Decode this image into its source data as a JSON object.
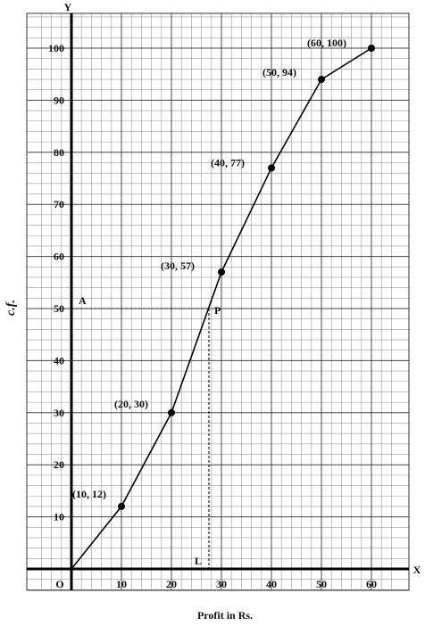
{
  "chart_data": {
    "type": "line",
    "title": "",
    "xlabel": "Profit in Rs.",
    "ylabel": "c.f.",
    "x_axis_name": "X",
    "y_axis_name": "Y",
    "origin_label": "O",
    "xlim": [
      -8,
      65
    ],
    "ylim": [
      -8,
      107
    ],
    "x_ticks": [
      10,
      20,
      30,
      40,
      50,
      60
    ],
    "x_tick_labels": [
      "10",
      "20",
      "30",
      "40",
      "50",
      "60"
    ],
    "y_ticks": [
      10,
      20,
      30,
      40,
      50,
      60,
      70,
      80,
      90,
      100
    ],
    "y_tick_labels": [
      "10",
      "20",
      "30",
      "40",
      "50",
      "60",
      "70",
      "80",
      "90",
      "100"
    ],
    "grid": true,
    "series": [
      {
        "x": [
          0,
          10,
          20,
          30,
          40,
          50,
          60
        ],
        "y": [
          0,
          12,
          30,
          57,
          77,
          94,
          100
        ]
      }
    ],
    "point_labels": [
      "(10, 12)",
      "(20, 30)",
      "(30, 57)",
      "(40, 77)",
      "(50, 94)",
      "(60, 100)"
    ],
    "annotations": [
      {
        "label": "A",
        "x": 0,
        "y": 50
      },
      {
        "label": "P",
        "x": 27.5,
        "y": 50
      },
      {
        "label": "L",
        "x": 27.5,
        "y": 0
      }
    ]
  }
}
